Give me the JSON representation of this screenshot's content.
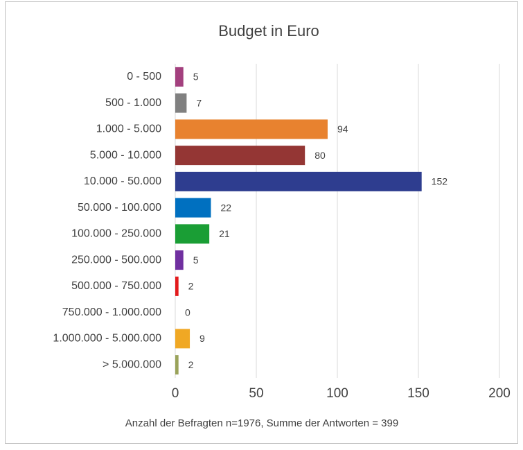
{
  "chart_data": {
    "type": "bar",
    "orientation": "horizontal",
    "title": "Budget in Euro",
    "categories": [
      "0 - 500",
      "500 - 1.000",
      "1.000 - 5.000",
      "5.000 - 10.000",
      "10.000 - 50.000",
      "50.000 - 100.000",
      "100.000 - 250.000",
      "250.000 - 500.000",
      "500.000 - 750.000",
      "750.000 - 1.000.000",
      "1.000.000 - 5.000.000",
      "> 5.000.000"
    ],
    "values": [
      5,
      7,
      94,
      80,
      152,
      22,
      21,
      5,
      2,
      0,
      9,
      2
    ],
    "colors": [
      "#a3407e",
      "#808080",
      "#e8822f",
      "#943634",
      "#2e3d8f",
      "#0070c0",
      "#1a9e35",
      "#7030a0",
      "#e31a1c",
      "#5b9bd5",
      "#f0a824",
      "#9aa35a"
    ],
    "xlim": [
      0,
      200
    ],
    "xticks": [
      0,
      50,
      100,
      150,
      200
    ],
    "grid": true,
    "xlabel": "Anzahl der Befragten n=1976, Summe der Antworten = 399"
  }
}
